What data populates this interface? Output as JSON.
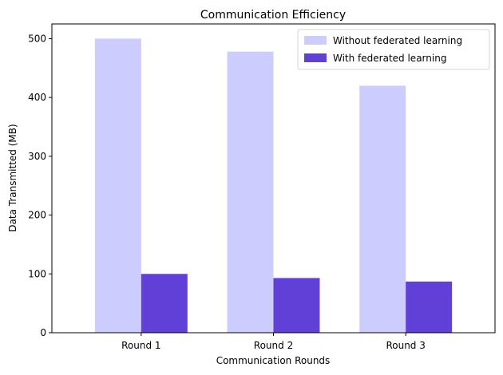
{
  "chart_data": {
    "type": "bar",
    "title": "Communication Efficiency",
    "xlabel": "Communication Rounds",
    "ylabel": "Data Transmitted (MB)",
    "categories": [
      "Round 1",
      "Round 2",
      "Round 3"
    ],
    "series": [
      {
        "name": "Without federated learning",
        "values": [
          500,
          478,
          420
        ],
        "color": "#ccccff"
      },
      {
        "name": "With federated learning",
        "values": [
          100,
          93,
          87
        ],
        "color": "#6040d6"
      }
    ],
    "ylim": [
      0,
      525
    ],
    "yticks": [
      0,
      100,
      200,
      300,
      400,
      500
    ],
    "legend_position": "top-right",
    "grid": false
  }
}
